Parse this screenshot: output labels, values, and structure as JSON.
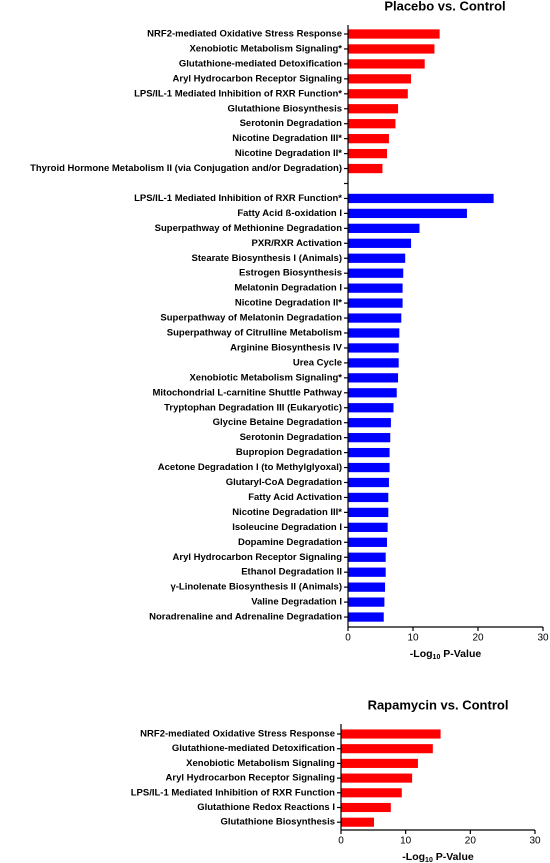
{
  "chart_data": [
    {
      "type": "bar",
      "orientation": "horizontal",
      "title": "Placebo vs. Control",
      "categories": [
        "NRF2-mediated Oxidative Stress Response",
        "Xenobiotic Metabolism Signaling*",
        "Glutathione-mediated Detoxification",
        "Aryl Hydrocarbon Receptor Signaling",
        "LPS/IL-1 Mediated Inhibition of RXR Function*",
        "Glutathione Biosynthesis",
        "Serotonin Degradation",
        "Nicotine Degradation III*",
        "Nicotine Degradation II*",
        "Thyroid Hormone Metabolism II (via Conjugation and/or Degradation)",
        null,
        "LPS/IL-1 Mediated Inhibition of RXR Function*",
        "Fatty Acid ß-oxidation I",
        "Superpathway of Methionine Degradation",
        "PXR/RXR Activation",
        "Stearate Biosynthesis I (Animals)",
        "Estrogen Biosynthesis",
        "Melatonin Degradation I",
        "Nicotine Degradation II*",
        "Superpathway of Melatonin Degradation",
        "Superpathway of Citrulline Metabolism",
        "Arginine Biosynthesis IV",
        "Urea Cycle",
        "Xenobiotic Metabolism Signaling*",
        "Mitochondrial L-carnitine Shuttle Pathway",
        "Tryptophan Degradation III (Eukaryotic)",
        "Glycine Betaine Degradation",
        "Serotonin Degradation",
        "Bupropion Degradation",
        "Acetone Degradation I (to Methylglyoxal)",
        "Glutaryl-CoA Degradation",
        "Fatty Acid Activation",
        "Nicotine Degradation III*",
        "Isoleucine Degradation I",
        "Dopamine Degradation",
        "Aryl Hydrocarbon Receptor Signaling",
        "Ethanol Degradation II",
        "γ-Linolenate Biosynthesis II (Animals)",
        "Valine Degradation I",
        "Noradrenaline and Adrenaline Degradation"
      ],
      "values": [
        14.1,
        13.3,
        11.8,
        9.7,
        9.2,
        7.7,
        7.3,
        6.3,
        6.0,
        5.3,
        null,
        22.4,
        18.3,
        11.0,
        9.7,
        8.8,
        8.5,
        8.4,
        8.4,
        8.2,
        7.9,
        7.8,
        7.8,
        7.7,
        7.5,
        7.0,
        6.6,
        6.5,
        6.4,
        6.4,
        6.3,
        6.2,
        6.2,
        6.1,
        6.0,
        5.8,
        5.8,
        5.7,
        5.6,
        5.5
      ],
      "colors": [
        "#ff0000",
        "#ff0000",
        "#ff0000",
        "#ff0000",
        "#ff0000",
        "#ff0000",
        "#ff0000",
        "#ff0000",
        "#ff0000",
        "#ff0000",
        null,
        "#0000ff",
        "#0000ff",
        "#0000ff",
        "#0000ff",
        "#0000ff",
        "#0000ff",
        "#0000ff",
        "#0000ff",
        "#0000ff",
        "#0000ff",
        "#0000ff",
        "#0000ff",
        "#0000ff",
        "#0000ff",
        "#0000ff",
        "#0000ff",
        "#0000ff",
        "#0000ff",
        "#0000ff",
        "#0000ff",
        "#0000ff",
        "#0000ff",
        "#0000ff",
        "#0000ff",
        "#0000ff",
        "#0000ff",
        "#0000ff",
        "#0000ff",
        "#0000ff"
      ],
      "xlabel": [
        "-Log",
        "10",
        " P-Value"
      ],
      "xlim": [
        0,
        30
      ],
      "xticks": [
        0,
        10,
        20,
        30
      ]
    },
    {
      "type": "bar",
      "orientation": "horizontal",
      "title": "Rapamycin vs. Control",
      "categories": [
        "NRF2-mediated Oxidative Stress Response",
        "Glutathione-mediated Detoxification",
        "Xenobiotic Metabolism Signaling",
        "Aryl Hydrocarbon Receptor Signaling",
        "LPS/IL-1 Mediated Inhibition of RXR Function",
        "Glutathione Redox Reactions I",
        "Glutathione Biosynthesis"
      ],
      "values": [
        15.4,
        14.2,
        11.9,
        11.0,
        9.4,
        7.7,
        5.1
      ],
      "colors": [
        "#ff0000",
        "#ff0000",
        "#ff0000",
        "#ff0000",
        "#ff0000",
        "#ff0000",
        "#ff0000"
      ],
      "xlabel": [
        "-Log",
        "10",
        " P-Value"
      ],
      "xlim": [
        0,
        30
      ],
      "xticks": [
        0,
        10,
        20,
        30
      ]
    }
  ]
}
